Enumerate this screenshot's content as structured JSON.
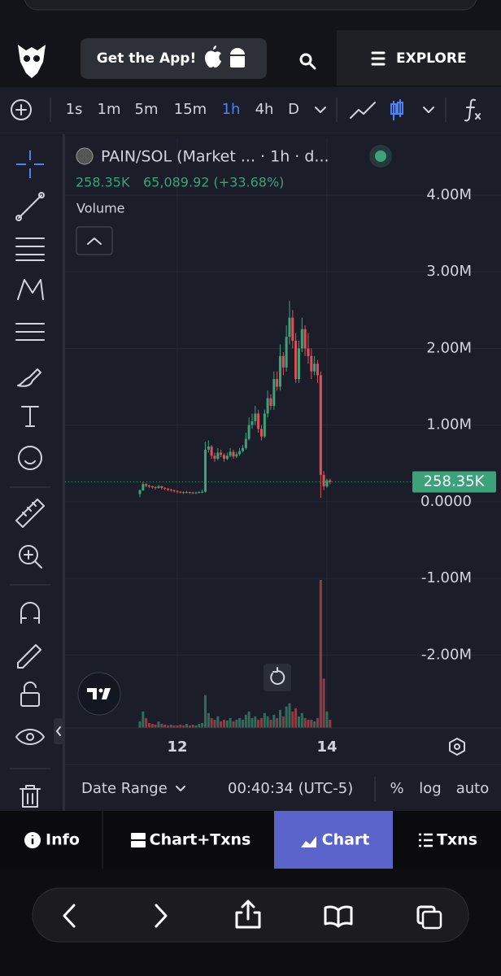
{
  "header": {
    "cta": "Get the App!",
    "explore": "EXPLORE"
  },
  "toolbar": {
    "intervals": [
      "1s",
      "1m",
      "5m",
      "15m",
      "1h",
      "4h",
      "D"
    ],
    "active_interval": 4
  },
  "legend": {
    "symbol": "PAIN/SOL (Market ... · 1h · d...",
    "price": "258.35K",
    "change": "65,089.92 (+33.68%)",
    "volume": "Volume"
  },
  "chart_data": {
    "type": "candlestick",
    "up_color": "#3ba27a",
    "down_color": "#e0505a",
    "xlim": [
      10.5,
      15.12
    ],
    "xticks": [
      12,
      14
    ],
    "ylim": [
      -2950000,
      4740000
    ],
    "yticks": [
      {
        "value": 4000000,
        "label": "4.00M"
      },
      {
        "value": 3000000,
        "label": "3.00M"
      },
      {
        "value": 2000000,
        "label": "2.00M"
      },
      {
        "value": 1000000,
        "label": "1.00M"
      },
      {
        "value": 0,
        "label": "0.0000"
      },
      {
        "value": -1000000,
        "label": "-1.00M"
      },
      {
        "value": -2000000,
        "label": "-2.00M"
      }
    ],
    "grid": true,
    "last_price": {
      "value": 258350,
      "label": "258.35K"
    },
    "x": [
      11.5,
      11.542,
      11.583,
      11.625,
      11.667,
      11.708,
      11.75,
      11.792,
      11.833,
      11.875,
      11.917,
      11.958,
      12,
      12.042,
      12.083,
      12.125,
      12.167,
      12.208,
      12.25,
      12.292,
      12.333,
      12.375,
      12.417,
      12.458,
      12.5,
      12.542,
      12.583,
      12.625,
      12.667,
      12.708,
      12.75,
      12.792,
      12.833,
      12.875,
      12.917,
      12.958,
      13,
      13.042,
      13.083,
      13.125,
      13.167,
      13.208,
      13.25,
      13.292,
      13.333,
      13.375,
      13.417,
      13.458,
      13.5,
      13.542,
      13.583,
      13.625,
      13.667,
      13.708,
      13.75,
      13.792,
      13.833,
      13.875,
      13.917,
      13.958,
      14,
      14.042
    ],
    "ohlc": [
      [
        100000,
        160000,
        60000,
        150000
      ],
      [
        150000,
        260000,
        140000,
        230000
      ],
      [
        230000,
        240000,
        190000,
        210000
      ],
      [
        210000,
        220000,
        180000,
        200000
      ],
      [
        200000,
        210000,
        170000,
        190000
      ],
      [
        190000,
        200000,
        160000,
        180000
      ],
      [
        180000,
        220000,
        170000,
        200000
      ],
      [
        200000,
        210000,
        160000,
        180000
      ],
      [
        180000,
        190000,
        150000,
        170000
      ],
      [
        170000,
        180000,
        140000,
        160000
      ],
      [
        160000,
        170000,
        130000,
        150000
      ],
      [
        150000,
        160000,
        120000,
        140000
      ],
      [
        140000,
        150000,
        110000,
        130000
      ],
      [
        130000,
        140000,
        110000,
        125000
      ],
      [
        125000,
        135000,
        100000,
        120000
      ],
      [
        120000,
        140000,
        110000,
        125000
      ],
      [
        125000,
        130000,
        100000,
        120000
      ],
      [
        120000,
        130000,
        100000,
        115000
      ],
      [
        115000,
        130000,
        100000,
        120000
      ],
      [
        120000,
        140000,
        110000,
        125000
      ],
      [
        125000,
        160000,
        110000,
        130000
      ],
      [
        130000,
        780000,
        120000,
        680000
      ],
      [
        680000,
        800000,
        640000,
        720000
      ],
      [
        720000,
        740000,
        560000,
        600000
      ],
      [
        600000,
        640000,
        520000,
        560000
      ],
      [
        560000,
        700000,
        540000,
        640000
      ],
      [
        640000,
        680000,
        580000,
        610000
      ],
      [
        610000,
        630000,
        520000,
        560000
      ],
      [
        560000,
        640000,
        540000,
        600000
      ],
      [
        600000,
        700000,
        580000,
        650000
      ],
      [
        650000,
        680000,
        560000,
        590000
      ],
      [
        590000,
        650000,
        570000,
        620000
      ],
      [
        620000,
        700000,
        600000,
        660000
      ],
      [
        660000,
        740000,
        640000,
        700000
      ],
      [
        700000,
        900000,
        680000,
        820000
      ],
      [
        820000,
        1100000,
        800000,
        1000000
      ],
      [
        1000000,
        1150000,
        950000,
        1050000
      ],
      [
        1050000,
        1250000,
        1000000,
        1150000
      ],
      [
        1150000,
        1200000,
        900000,
        950000
      ],
      [
        950000,
        1000000,
        800000,
        850000
      ],
      [
        850000,
        1200000,
        830000,
        1150000
      ],
      [
        1150000,
        1450000,
        1100000,
        1350000
      ],
      [
        1350000,
        1400000,
        1200000,
        1250000
      ],
      [
        1250000,
        1700000,
        1200000,
        1600000
      ],
      [
        1600000,
        1700000,
        1450000,
        1500000
      ],
      [
        1500000,
        2050000,
        1450000,
        1900000
      ],
      [
        1900000,
        1950000,
        1650000,
        1750000
      ],
      [
        1750000,
        2300000,
        1700000,
        2150000
      ],
      [
        2150000,
        2620000,
        2050000,
        2400000
      ],
      [
        2400000,
        2500000,
        2000000,
        2100000
      ],
      [
        2100000,
        2200000,
        1550000,
        1600000
      ],
      [
        1600000,
        2100000,
        1550000,
        2000000
      ],
      [
        2000000,
        2400000,
        1950000,
        2250000
      ],
      [
        2250000,
        2300000,
        1900000,
        2000000
      ],
      [
        2000000,
        2200000,
        1800000,
        1900000
      ],
      [
        1900000,
        2000000,
        1600000,
        1700000
      ],
      [
        1700000,
        1900000,
        1650000,
        1800000
      ],
      [
        1800000,
        1850000,
        1550000,
        1650000
      ],
      [
        1650000,
        1700000,
        50000,
        350000
      ],
      [
        350000,
        400000,
        150000,
        200000
      ],
      [
        200000,
        300000,
        180000,
        280000
      ],
      [
        280000,
        300000,
        230000,
        258350
      ]
    ],
    "volume": [
      8,
      20,
      12,
      6,
      5,
      4,
      8,
      5,
      4,
      3,
      4,
      3,
      3,
      4,
      3,
      5,
      3,
      4,
      3,
      5,
      6,
      40,
      18,
      12,
      10,
      14,
      8,
      10,
      9,
      12,
      8,
      10,
      12,
      10,
      16,
      20,
      12,
      14,
      10,
      12,
      18,
      14,
      10,
      16,
      12,
      22,
      14,
      26,
      30,
      20,
      24,
      14,
      18,
      12,
      10,
      10,
      8,
      12,
      180,
      60,
      20,
      10
    ]
  },
  "footer": {
    "date_range": "Date Range",
    "time": "00:40:34 (UTC-5)",
    "options": [
      "%",
      "log",
      "auto"
    ]
  },
  "tabs": {
    "items": [
      "Info",
      "Chart+Txns",
      "Chart",
      "Txns"
    ],
    "active": 2
  }
}
